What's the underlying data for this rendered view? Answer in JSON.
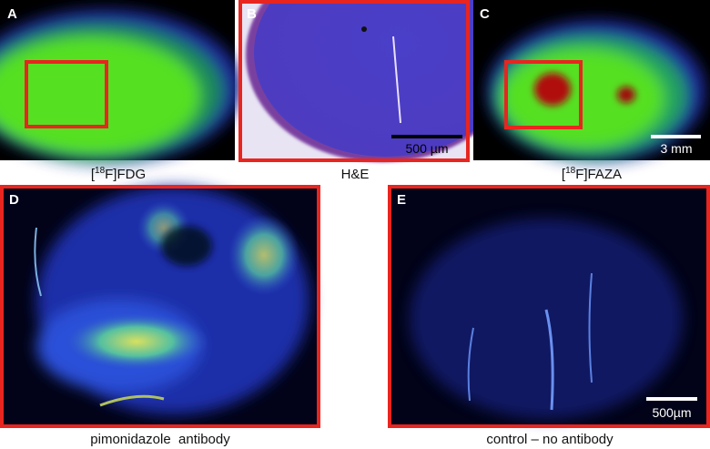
{
  "panels": [
    {
      "letter": "A",
      "caption": {
        "open": "[",
        "sup": "18",
        "rest": "F]FDG"
      }
    },
    {
      "letter": "B",
      "caption": "H&E",
      "scale_bar": "500 µm"
    },
    {
      "letter": "C",
      "caption": {
        "open": "[",
        "sup": "18",
        "rest": "F]FAZA"
      },
      "scale_bar": "3 mm"
    },
    {
      "letter": "D",
      "caption": "pimonidazole  antibody"
    },
    {
      "letter": "E",
      "caption": "control – no antibody",
      "scale_bar": "500µm"
    }
  ]
}
